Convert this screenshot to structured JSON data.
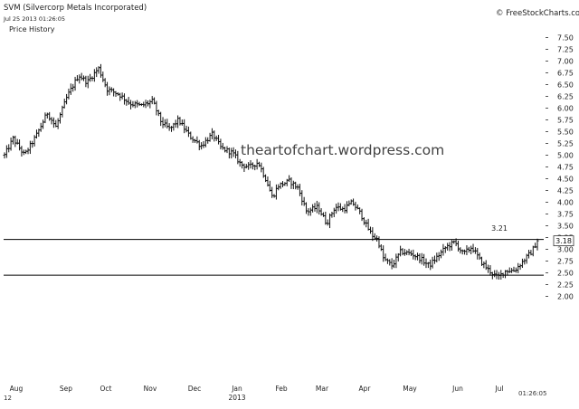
{
  "header": {
    "title": "SVM (Silvercorp Metals Incorporated)",
    "timestamp": "Jul 25 2013 01:26:05",
    "panel_label": "Price History",
    "copyright": "© FreeStockCharts.com"
  },
  "watermark": "theartofchart.wordpress.com",
  "footer": {
    "left_year": "12",
    "right_time": "01:26:05"
  },
  "chart_data": {
    "type": "ohlc",
    "title": "SVM (Silvercorp Metals Incorporated)",
    "subtitle": "Price History",
    "xlabel": "",
    "ylabel": "",
    "ylim": [
      1.75,
      7.75
    ],
    "yticks": [
      7.5,
      7.25,
      7.0,
      6.75,
      6.5,
      6.25,
      6.0,
      5.75,
      5.5,
      5.25,
      5.0,
      4.75,
      4.5,
      4.25,
      4.0,
      3.75,
      3.5,
      3.25,
      3.0,
      2.75,
      2.5,
      2.25,
      2.0
    ],
    "ytick_labels": [
      "7.50",
      "7.25",
      "7.00",
      "6.75",
      "6.50",
      "6.25",
      "6.00",
      "5.75",
      "5.50",
      "5.25",
      "5.00",
      "4.75",
      "4.50",
      "4.25",
      "4.00",
      "3.75",
      "3.50",
      "3.25",
      "3.00",
      "2.75",
      "2.50",
      "2.25",
      "2.00"
    ],
    "x_months": [
      "Aug",
      "Sep",
      "Oct",
      "Nov",
      "Dec",
      "Jan",
      "Feb",
      "Mar",
      "Apr",
      "May",
      "Jun",
      "Jul"
    ],
    "x_year_label": "2013",
    "grid": false,
    "legend": "none",
    "bar_color": "#111111",
    "last_value": 3.18,
    "last_value_label": "3.18",
    "horizontal_lines": [
      3.21,
      2.45
    ],
    "annotations": [
      {
        "text": "3.21",
        "x": "Jul",
        "y": 3.45
      }
    ],
    "series": [
      {
        "waypoints": [
          [
            0,
            5.0
          ],
          [
            6,
            5.35
          ],
          [
            14,
            5.0
          ],
          [
            22,
            5.4
          ],
          [
            30,
            5.9
          ],
          [
            36,
            5.6
          ],
          [
            44,
            6.25
          ],
          [
            52,
            6.7
          ],
          [
            58,
            6.55
          ],
          [
            66,
            6.85
          ],
          [
            72,
            6.4
          ],
          [
            80,
            6.3
          ],
          [
            88,
            6.1
          ],
          [
            96,
            6.05
          ],
          [
            104,
            6.15
          ],
          [
            110,
            5.7
          ],
          [
            116,
            5.55
          ],
          [
            122,
            5.75
          ],
          [
            130,
            5.4
          ],
          [
            138,
            5.2
          ],
          [
            146,
            5.45
          ],
          [
            152,
            5.15
          ],
          [
            160,
            5.05
          ],
          [
            166,
            4.8
          ],
          [
            172,
            4.75
          ],
          [
            178,
            4.85
          ],
          [
            184,
            4.45
          ],
          [
            188,
            4.1
          ],
          [
            192,
            4.35
          ],
          [
            200,
            4.45
          ],
          [
            206,
            4.3
          ],
          [
            212,
            3.8
          ],
          [
            220,
            3.9
          ],
          [
            226,
            3.55
          ],
          [
            232,
            3.9
          ],
          [
            238,
            3.85
          ],
          [
            244,
            4.0
          ],
          [
            250,
            3.75
          ],
          [
            254,
            3.5
          ],
          [
            258,
            3.3
          ],
          [
            262,
            3.2
          ],
          [
            266,
            2.8
          ],
          [
            272,
            2.65
          ],
          [
            278,
            2.95
          ],
          [
            286,
            2.9
          ],
          [
            292,
            2.8
          ],
          [
            298,
            2.65
          ],
          [
            304,
            2.85
          ],
          [
            310,
            3.05
          ],
          [
            316,
            3.15
          ],
          [
            322,
            2.9
          ],
          [
            328,
            3.05
          ],
          [
            334,
            2.75
          ],
          [
            340,
            2.55
          ],
          [
            346,
            2.4
          ],
          [
            352,
            2.55
          ],
          [
            358,
            2.55
          ],
          [
            364,
            2.75
          ],
          [
            370,
            2.95
          ],
          [
            374,
            3.18
          ]
        ],
        "bar_count": 250
      }
    ]
  }
}
